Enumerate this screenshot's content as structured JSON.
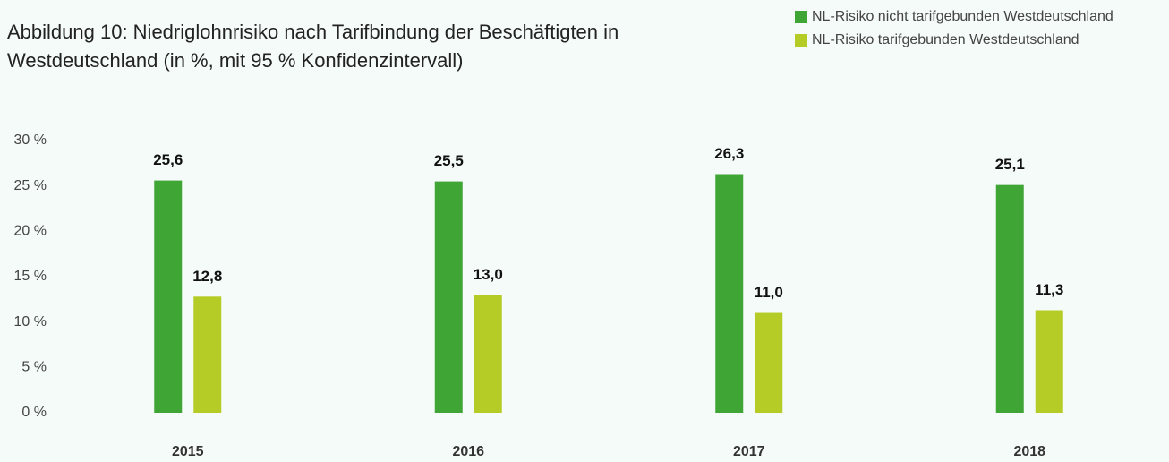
{
  "chart_data": {
    "type": "bar",
    "title": "Abbildung 10: Niedriglohnrisiko nach Tarifbindung der Beschäftigten in Westdeutschland (in %, mit 95 % Konfidenzintervall)",
    "categories": [
      "2015",
      "2016",
      "2017",
      "2018"
    ],
    "series": [
      {
        "name": "NL-Risiko nicht tarifgebunden Westdeutschland",
        "color": "#3fa535",
        "values": [
          25.6,
          25.5,
          26.3,
          25.1
        ],
        "value_labels": [
          "25,6",
          "25,5",
          "26,3",
          "25,1"
        ]
      },
      {
        "name": "NL-Risiko tarifgebunden Westdeutschland",
        "color": "#b5cc27",
        "values": [
          12.8,
          13.0,
          11.0,
          11.3
        ],
        "value_labels": [
          "12,8",
          "13,0",
          "11,0",
          "11,3"
        ]
      }
    ],
    "ylim": [
      0,
      30
    ],
    "yticks": [
      {
        "value": 0,
        "label": "0 %"
      },
      {
        "value": 5,
        "label": "5 %"
      },
      {
        "value": 10,
        "label": "10 %"
      },
      {
        "value": 15,
        "label": "15 %"
      },
      {
        "value": 20,
        "label": "20 %"
      },
      {
        "value": 25,
        "label": "25 %"
      },
      {
        "value": 30,
        "label": "30 %"
      }
    ],
    "grid": false,
    "legend": "top-right"
  }
}
